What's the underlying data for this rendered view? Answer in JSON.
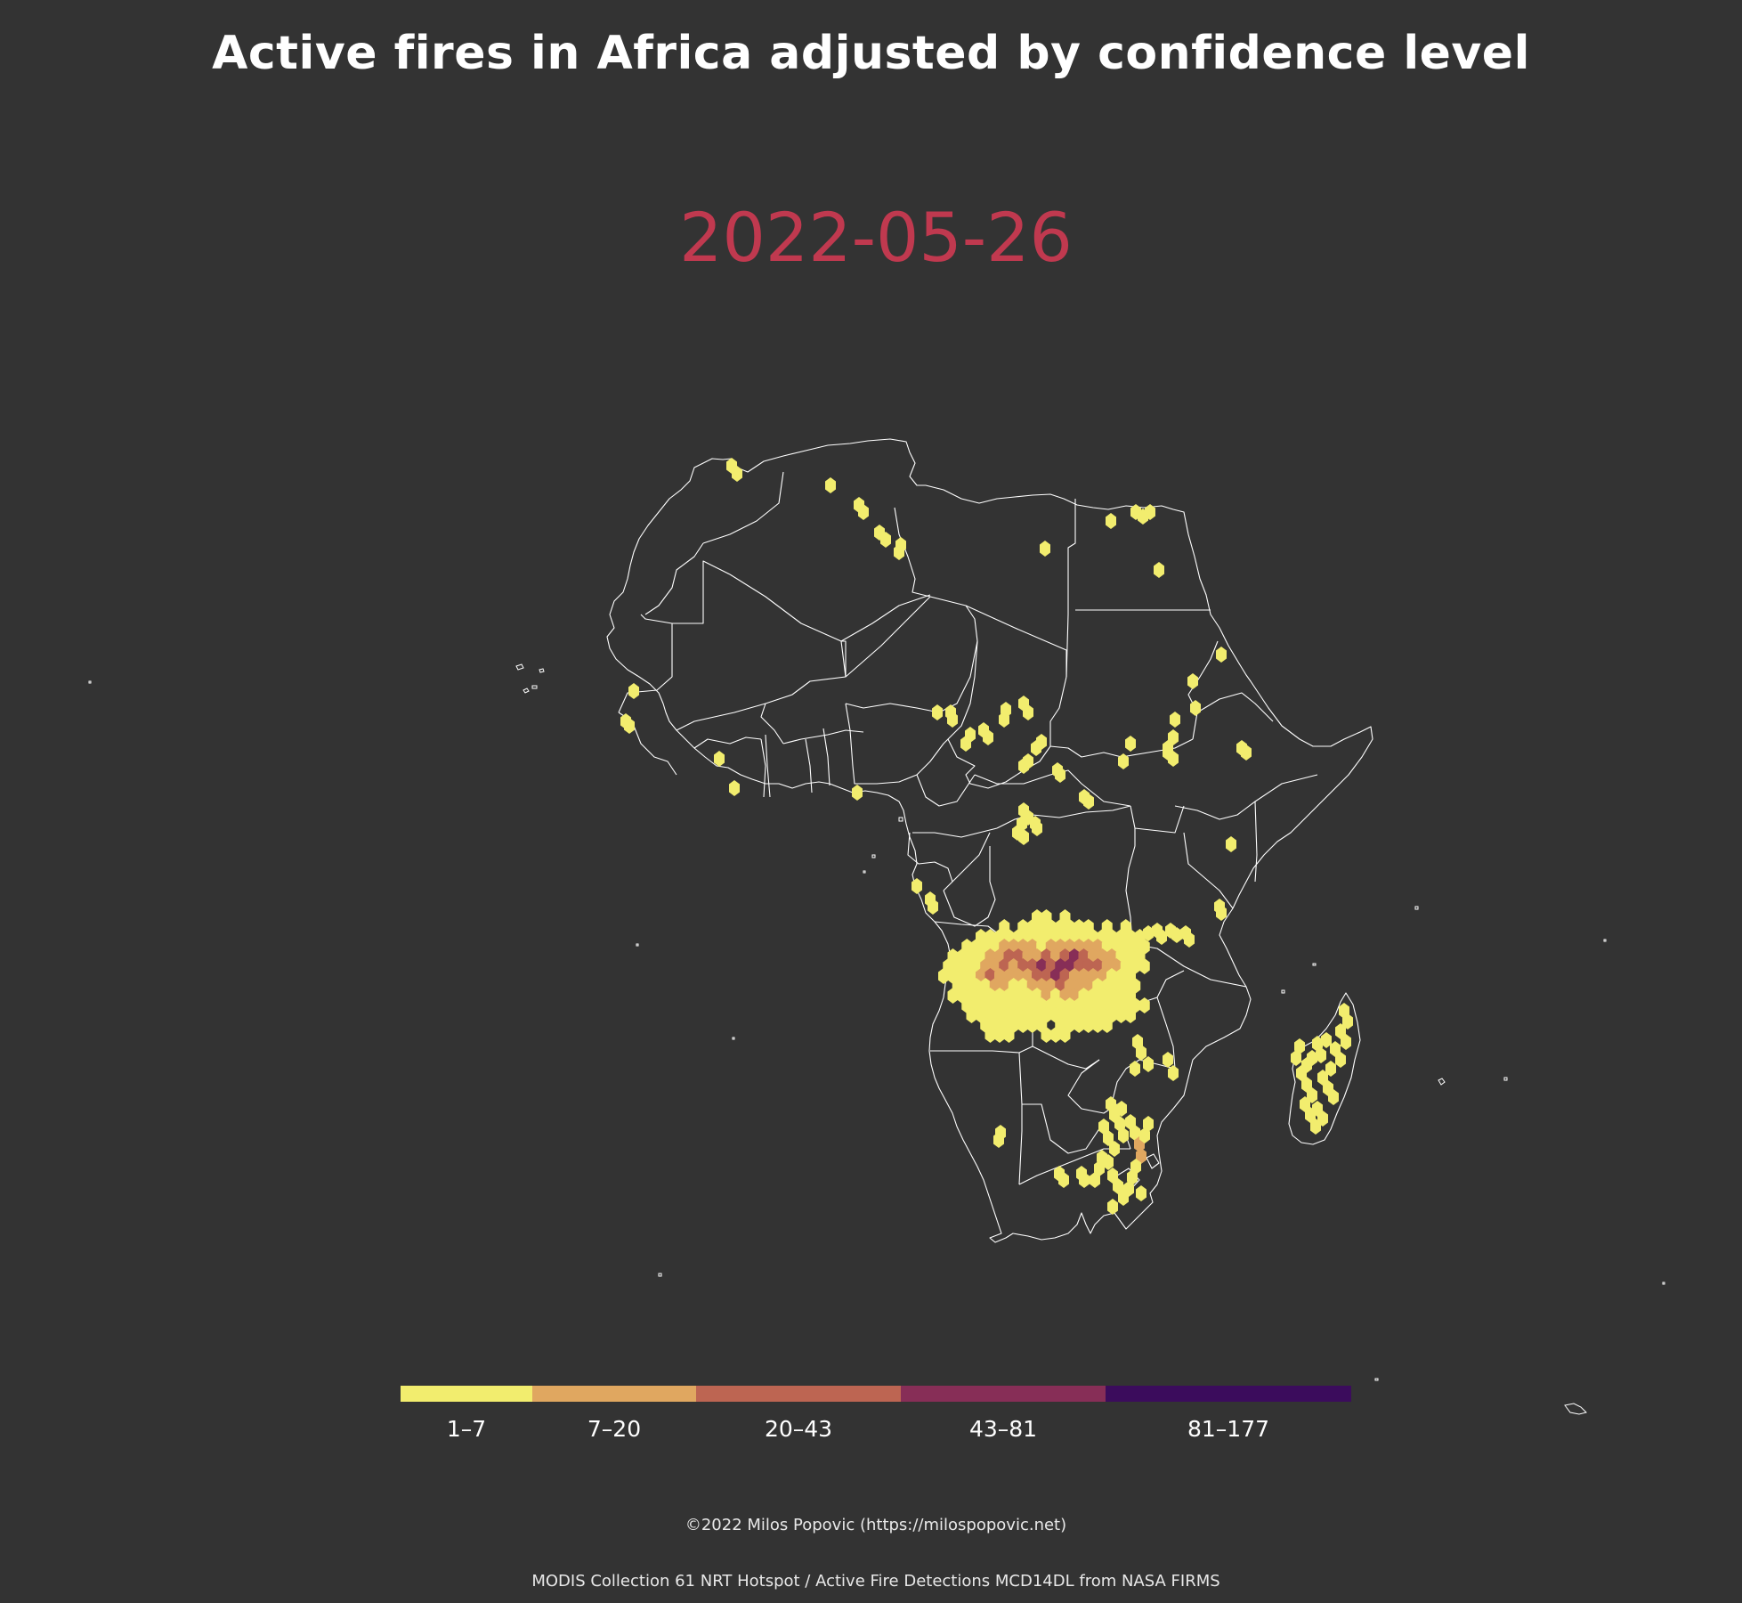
{
  "title": "Active fires in Africa adjusted by confidence level",
  "date": "2022-05-26",
  "colors": {
    "background": "#333333",
    "date_text": "#c0394f",
    "borders": "#ffffff"
  },
  "legend": {
    "items": [
      {
        "label": "1–7",
        "color": "#f2ed6e"
      },
      {
        "label": "7–20",
        "color": "#e0a760"
      },
      {
        "label": "20–43",
        "color": "#bd6552"
      },
      {
        "label": "43–81",
        "color": "#872e57"
      },
      {
        "label": "81–177",
        "color": "#3b0c5c"
      }
    ]
  },
  "credits": {
    "author": "©2022 Milos Popovic (https://milospopovic.net)",
    "source": "MODIS Collection 61 NRT Hotspot / Active Fire Detections MCD14DL from NASA FIRMS"
  }
}
